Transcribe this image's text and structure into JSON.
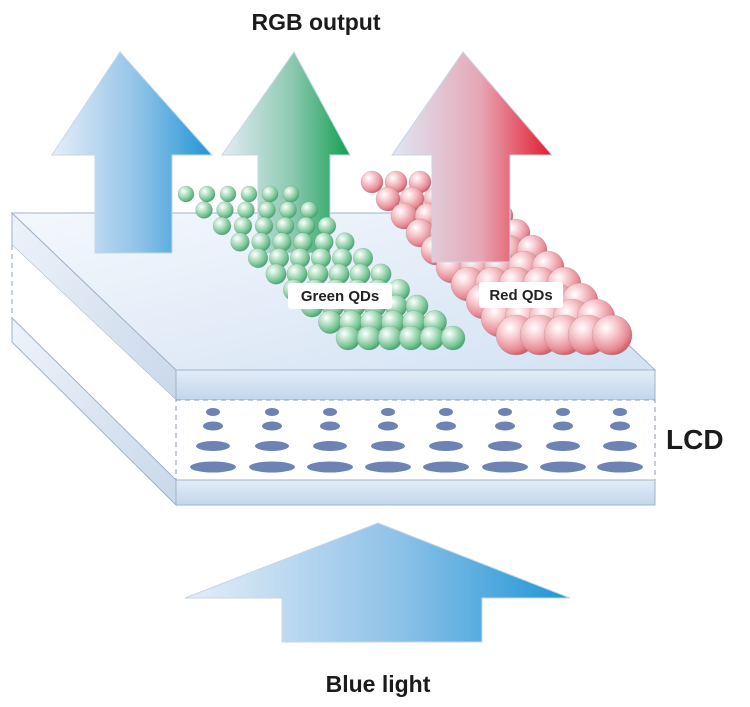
{
  "labels": {
    "rgb_output": "RGB output",
    "lcd": "LCD",
    "blue_light": "Blue light",
    "green_qds": "Green QDs",
    "red_qds": "Red QDs"
  },
  "colors": {
    "blue_arrow": "#2a9ad8",
    "green_arrow": "#1fa05a",
    "red_arrow": "#e0202e",
    "green_qd": "#8fd2a8",
    "red_qd": "#f0a2aa",
    "lc_molecule": "#6c83b4",
    "panel": "#dbe7f6"
  }
}
